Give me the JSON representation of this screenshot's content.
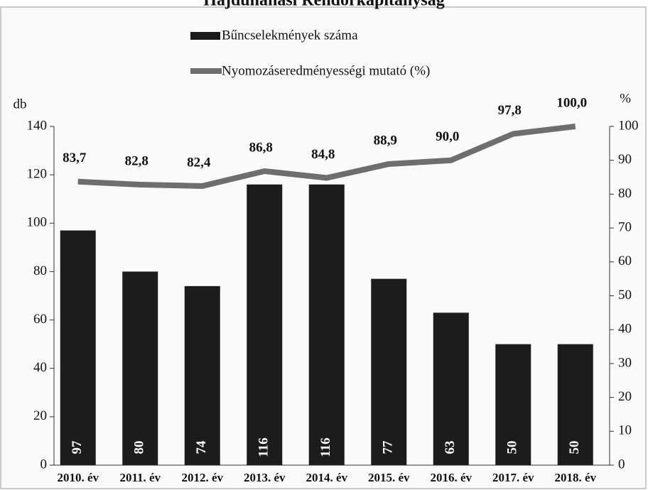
{
  "chart_data": {
    "type": "bar_line",
    "title": "Hajdúnánási Rendőrkapitányság",
    "categories": [
      "2010. év",
      "2011. év",
      "2012. év",
      "2013. év",
      "2014. év",
      "2015. év",
      "2016. év",
      "2017. év",
      "2018. év"
    ],
    "series": [
      {
        "name": "Bűncselekmények száma",
        "type": "bar",
        "color": "#1c1c1c",
        "values": [
          97,
          80,
          74,
          116,
          116,
          77,
          63,
          50,
          50
        ]
      },
      {
        "name": "Nyomozáseredményességi mutató (%)",
        "type": "line",
        "axis": "y2",
        "color": "#6e6e6e",
        "values": [
          83.7,
          82.8,
          82.4,
          86.8,
          84.8,
          88.9,
          90.0,
          97.8,
          100.0
        ],
        "value_labels": [
          "83,7",
          "82,8",
          "82,4",
          "86,8",
          "84,8",
          "88,9",
          "90,0",
          "97,8",
          "100,0"
        ]
      }
    ],
    "ylabel": "db",
    "y2label": "%",
    "ylim": [
      0,
      140
    ],
    "yticks": [
      0,
      20,
      40,
      60,
      80,
      100,
      120,
      140
    ],
    "y2lim": [
      0,
      100
    ],
    "y2ticks": [
      0,
      10,
      20,
      30,
      40,
      50,
      60,
      70,
      80,
      90,
      100
    ]
  }
}
